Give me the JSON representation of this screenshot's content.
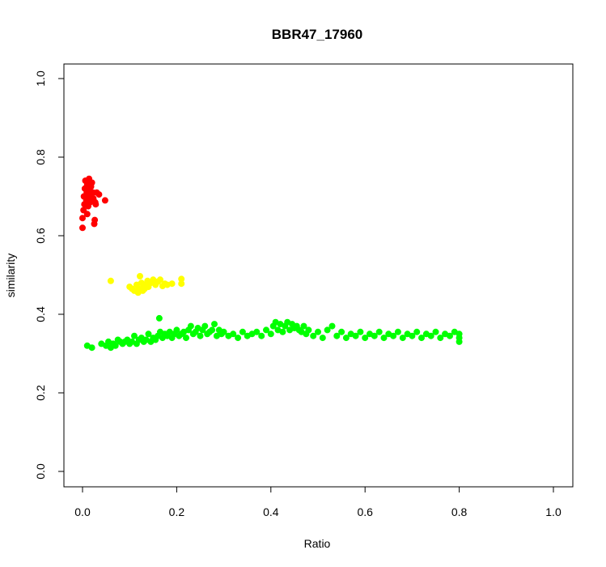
{
  "chart_data": {
    "type": "scatter",
    "title": "BBR47_17960",
    "xlabel": "Ratio",
    "ylabel": "similarity",
    "xlim": [
      0,
      1
    ],
    "ylim": [
      0,
      1
    ],
    "x_ticks": [
      "0.0",
      "0.2",
      "0.4",
      "0.6",
      "0.8",
      "1.0"
    ],
    "y_ticks": [
      "0.0",
      "0.2",
      "0.4",
      "0.6",
      "0.8",
      "1.0"
    ],
    "grid": false,
    "series": [
      {
        "color": "#ff0000",
        "points": [
          [
            0.0,
            0.62
          ],
          [
            0.0,
            0.645
          ],
          [
            0.002,
            0.665
          ],
          [
            0.004,
            0.68
          ],
          [
            0.003,
            0.7
          ],
          [
            0.005,
            0.72
          ],
          [
            0.006,
            0.74
          ],
          [
            0.008,
            0.69
          ],
          [
            0.009,
            0.71
          ],
          [
            0.01,
            0.73
          ],
          [
            0.01,
            0.655
          ],
          [
            0.012,
            0.675
          ],
          [
            0.013,
            0.695
          ],
          [
            0.014,
            0.745
          ],
          [
            0.015,
            0.715
          ],
          [
            0.016,
            0.685
          ],
          [
            0.017,
            0.705
          ],
          [
            0.018,
            0.725
          ],
          [
            0.02,
            0.735
          ],
          [
            0.021,
            0.69
          ],
          [
            0.022,
            0.71
          ],
          [
            0.023,
            0.695
          ],
          [
            0.025,
            0.63
          ],
          [
            0.026,
            0.64
          ],
          [
            0.027,
            0.685
          ],
          [
            0.028,
            0.68
          ],
          [
            0.03,
            0.71
          ],
          [
            0.035,
            0.705
          ],
          [
            0.048,
            0.69
          ]
        ]
      },
      {
        "color": "#ffff00",
        "points": [
          [
            0.06,
            0.485
          ],
          [
            0.1,
            0.47
          ],
          [
            0.105,
            0.465
          ],
          [
            0.11,
            0.46
          ],
          [
            0.115,
            0.475
          ],
          [
            0.118,
            0.455
          ],
          [
            0.12,
            0.465
          ],
          [
            0.122,
            0.497
          ],
          [
            0.125,
            0.48
          ],
          [
            0.128,
            0.46
          ],
          [
            0.13,
            0.47
          ],
          [
            0.132,
            0.465
          ],
          [
            0.135,
            0.475
          ],
          [
            0.138,
            0.485
          ],
          [
            0.14,
            0.47
          ],
          [
            0.145,
            0.48
          ],
          [
            0.15,
            0.488
          ],
          [
            0.155,
            0.475
          ],
          [
            0.16,
            0.483
          ],
          [
            0.165,
            0.488
          ],
          [
            0.17,
            0.472
          ],
          [
            0.175,
            0.478
          ],
          [
            0.18,
            0.475
          ],
          [
            0.19,
            0.478
          ],
          [
            0.21,
            0.478
          ],
          [
            0.21,
            0.49
          ]
        ]
      },
      {
        "color": "#00ff00",
        "points": [
          [
            0.01,
            0.32
          ],
          [
            0.02,
            0.315
          ],
          [
            0.04,
            0.325
          ],
          [
            0.05,
            0.32
          ],
          [
            0.055,
            0.33
          ],
          [
            0.06,
            0.315
          ],
          [
            0.065,
            0.325
          ],
          [
            0.07,
            0.32
          ],
          [
            0.075,
            0.335
          ],
          [
            0.08,
            0.33
          ],
          [
            0.085,
            0.325
          ],
          [
            0.09,
            0.33
          ],
          [
            0.095,
            0.335
          ],
          [
            0.1,
            0.325
          ],
          [
            0.105,
            0.33
          ],
          [
            0.11,
            0.345
          ],
          [
            0.115,
            0.325
          ],
          [
            0.12,
            0.335
          ],
          [
            0.125,
            0.34
          ],
          [
            0.13,
            0.33
          ],
          [
            0.135,
            0.335
          ],
          [
            0.14,
            0.35
          ],
          [
            0.145,
            0.33
          ],
          [
            0.15,
            0.34
          ],
          [
            0.155,
            0.335
          ],
          [
            0.16,
            0.345
          ],
          [
            0.163,
            0.39
          ],
          [
            0.165,
            0.355
          ],
          [
            0.17,
            0.34
          ],
          [
            0.175,
            0.35
          ],
          [
            0.18,
            0.345
          ],
          [
            0.185,
            0.355
          ],
          [
            0.19,
            0.34
          ],
          [
            0.195,
            0.35
          ],
          [
            0.2,
            0.36
          ],
          [
            0.205,
            0.345
          ],
          [
            0.21,
            0.35
          ],
          [
            0.215,
            0.355
          ],
          [
            0.22,
            0.34
          ],
          [
            0.225,
            0.36
          ],
          [
            0.23,
            0.37
          ],
          [
            0.235,
            0.35
          ],
          [
            0.24,
            0.355
          ],
          [
            0.245,
            0.365
          ],
          [
            0.25,
            0.345
          ],
          [
            0.255,
            0.36
          ],
          [
            0.26,
            0.37
          ],
          [
            0.265,
            0.35
          ],
          [
            0.27,
            0.355
          ],
          [
            0.275,
            0.36
          ],
          [
            0.28,
            0.375
          ],
          [
            0.285,
            0.345
          ],
          [
            0.29,
            0.36
          ],
          [
            0.295,
            0.35
          ],
          [
            0.3,
            0.355
          ],
          [
            0.31,
            0.345
          ],
          [
            0.32,
            0.35
          ],
          [
            0.33,
            0.34
          ],
          [
            0.34,
            0.355
          ],
          [
            0.35,
            0.345
          ],
          [
            0.36,
            0.35
          ],
          [
            0.37,
            0.355
          ],
          [
            0.38,
            0.345
          ],
          [
            0.39,
            0.36
          ],
          [
            0.4,
            0.35
          ],
          [
            0.405,
            0.37
          ],
          [
            0.41,
            0.38
          ],
          [
            0.415,
            0.36
          ],
          [
            0.42,
            0.375
          ],
          [
            0.425,
            0.355
          ],
          [
            0.43,
            0.37
          ],
          [
            0.435,
            0.38
          ],
          [
            0.44,
            0.36
          ],
          [
            0.445,
            0.375
          ],
          [
            0.45,
            0.365
          ],
          [
            0.455,
            0.37
          ],
          [
            0.46,
            0.36
          ],
          [
            0.465,
            0.355
          ],
          [
            0.47,
            0.37
          ],
          [
            0.475,
            0.35
          ],
          [
            0.48,
            0.36
          ],
          [
            0.49,
            0.345
          ],
          [
            0.5,
            0.355
          ],
          [
            0.51,
            0.34
          ],
          [
            0.52,
            0.36
          ],
          [
            0.53,
            0.37
          ],
          [
            0.54,
            0.345
          ],
          [
            0.55,
            0.355
          ],
          [
            0.56,
            0.34
          ],
          [
            0.57,
            0.35
          ],
          [
            0.58,
            0.345
          ],
          [
            0.59,
            0.355
          ],
          [
            0.6,
            0.34
          ],
          [
            0.61,
            0.35
          ],
          [
            0.62,
            0.345
          ],
          [
            0.63,
            0.355
          ],
          [
            0.64,
            0.34
          ],
          [
            0.65,
            0.35
          ],
          [
            0.66,
            0.345
          ],
          [
            0.67,
            0.355
          ],
          [
            0.68,
            0.34
          ],
          [
            0.69,
            0.35
          ],
          [
            0.7,
            0.345
          ],
          [
            0.71,
            0.355
          ],
          [
            0.72,
            0.34
          ],
          [
            0.73,
            0.35
          ],
          [
            0.74,
            0.345
          ],
          [
            0.75,
            0.355
          ],
          [
            0.76,
            0.34
          ],
          [
            0.77,
            0.35
          ],
          [
            0.78,
            0.345
          ],
          [
            0.79,
            0.355
          ],
          [
            0.8,
            0.34
          ],
          [
            0.8,
            0.33
          ],
          [
            0.8,
            0.35
          ]
        ]
      }
    ]
  }
}
